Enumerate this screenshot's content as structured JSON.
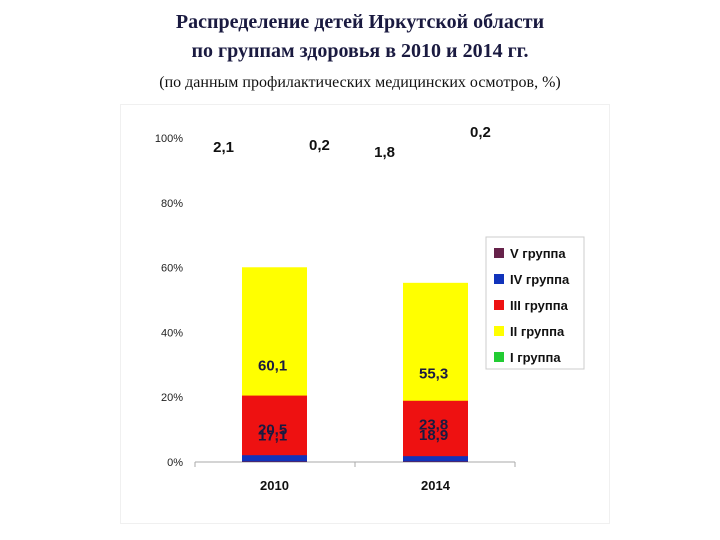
{
  "header": {
    "title_line1": "Распределение детей Иркутской области",
    "title_line2": "по группам здоровья в 2010 и 2014 гг.",
    "subtitle": "(по данным профилактических медицинских осмотров, %)"
  },
  "chart_data": {
    "type": "bar",
    "stacked": true,
    "categories": [
      "2010",
      "2014"
    ],
    "series": [
      {
        "name": "I группа",
        "values": [
          17.1,
          23.8
        ],
        "labels": [
          "17,1",
          "23,8"
        ],
        "color": "#22cc33"
      },
      {
        "name": "II группа",
        "values": [
          60.1,
          55.3
        ],
        "labels": [
          "60,1",
          "55,3"
        ],
        "color": "#ffff00"
      },
      {
        "name": "III группа",
        "values": [
          20.5,
          18.9
        ],
        "labels": [
          "20,5",
          "18,9"
        ],
        "color": "#ee1111"
      },
      {
        "name": "IV группа",
        "values": [
          2.1,
          1.8
        ],
        "labels": [
          "2,1",
          "1,8"
        ],
        "color": "#1133bb"
      },
      {
        "name": "V группа",
        "values": [
          0.2,
          0.2
        ],
        "labels": [
          "0,2",
          "0,2"
        ],
        "color": "#66224a"
      }
    ],
    "y_ticks": [
      "0%",
      "20%",
      "40%",
      "60%",
      "80%",
      "100%"
    ],
    "ylim": [
      0,
      100
    ],
    "legend_position": "right",
    "grid": false
  }
}
